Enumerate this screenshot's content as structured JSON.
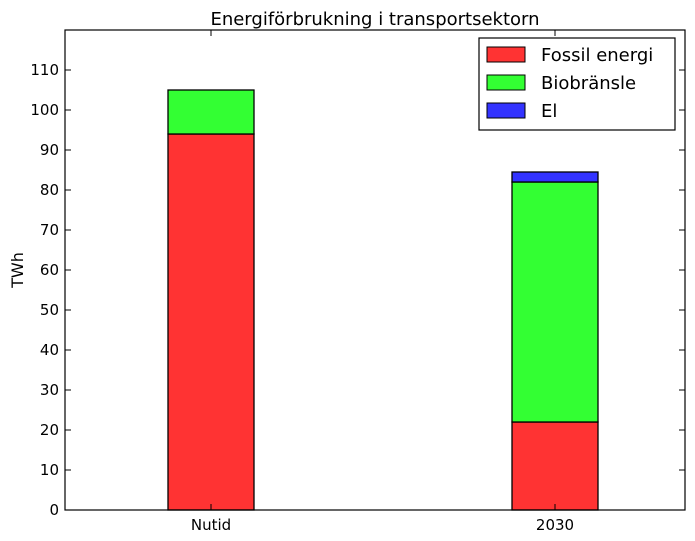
{
  "chart_data": {
    "type": "bar",
    "stacked": true,
    "title": "Energiförbrukning i transportsektorn",
    "xlabel": "",
    "ylabel": "TWh",
    "categories": [
      "Nutid",
      "2030"
    ],
    "ylim": [
      0,
      120
    ],
    "yticks": [
      0,
      10,
      20,
      30,
      40,
      50,
      60,
      70,
      80,
      90,
      100,
      110
    ],
    "series": [
      {
        "name": "Fossil energi",
        "values": [
          94,
          22
        ],
        "color": "#ff3333"
      },
      {
        "name": "Biobränsle",
        "values": [
          11,
          60
        ],
        "color": "#33ff33"
      },
      {
        "name": "El",
        "values": [
          0,
          2.5
        ],
        "color": "#3333ff"
      }
    ],
    "legend_position": "top-right",
    "grid": false
  }
}
